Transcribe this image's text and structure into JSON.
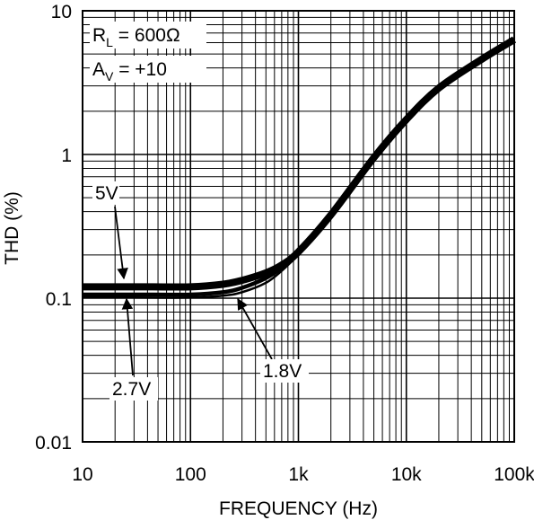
{
  "chart_data": {
    "type": "line",
    "title": "",
    "xlabel": "FREQUENCY (Hz)",
    "ylabel": "THD (%)",
    "xscale": "log",
    "yscale": "log",
    "xlim": [
      10,
      100000
    ],
    "ylim": [
      0.01,
      10
    ],
    "grid": true,
    "x_tick_labels": [
      "10",
      "100",
      "1k",
      "10k",
      "100k"
    ],
    "y_tick_labels": [
      "0.01",
      "0.1",
      "1",
      "10"
    ],
    "conditions": [
      {
        "main": "R",
        "sub": "L",
        "rest": " = 600Ω"
      },
      {
        "main": "A",
        "sub": "V",
        "rest": " = +10"
      }
    ],
    "series": [
      {
        "name": "5V",
        "x": [
          10,
          30,
          100,
          200,
          300,
          500,
          700,
          1000,
          2000,
          5000,
          10000,
          20000,
          50000,
          100000
        ],
        "y": [
          0.12,
          0.12,
          0.12,
          0.125,
          0.133,
          0.15,
          0.17,
          0.21,
          0.38,
          0.95,
          1.75,
          2.9,
          4.6,
          6.3
        ],
        "line_width": "thick"
      },
      {
        "name": "2.7V",
        "x": [
          10,
          30,
          100,
          200,
          300,
          500,
          700,
          1000
        ],
        "y": [
          0.106,
          0.106,
          0.106,
          0.11,
          0.118,
          0.138,
          0.163,
          0.205
        ],
        "line_width": "medium"
      },
      {
        "name": "1.8V",
        "x": [
          10,
          30,
          100,
          200,
          300,
          500,
          700,
          1000
        ],
        "y": [
          0.101,
          0.101,
          0.101,
          0.104,
          0.11,
          0.128,
          0.155,
          0.2
        ],
        "line_width": "thin"
      }
    ],
    "annotations": [
      {
        "text": "5V",
        "points_to_series": "5V"
      },
      {
        "text": "2.7V",
        "points_to_series": "2.7V"
      },
      {
        "text": "1.8V",
        "points_to_series": "1.8V"
      }
    ]
  }
}
